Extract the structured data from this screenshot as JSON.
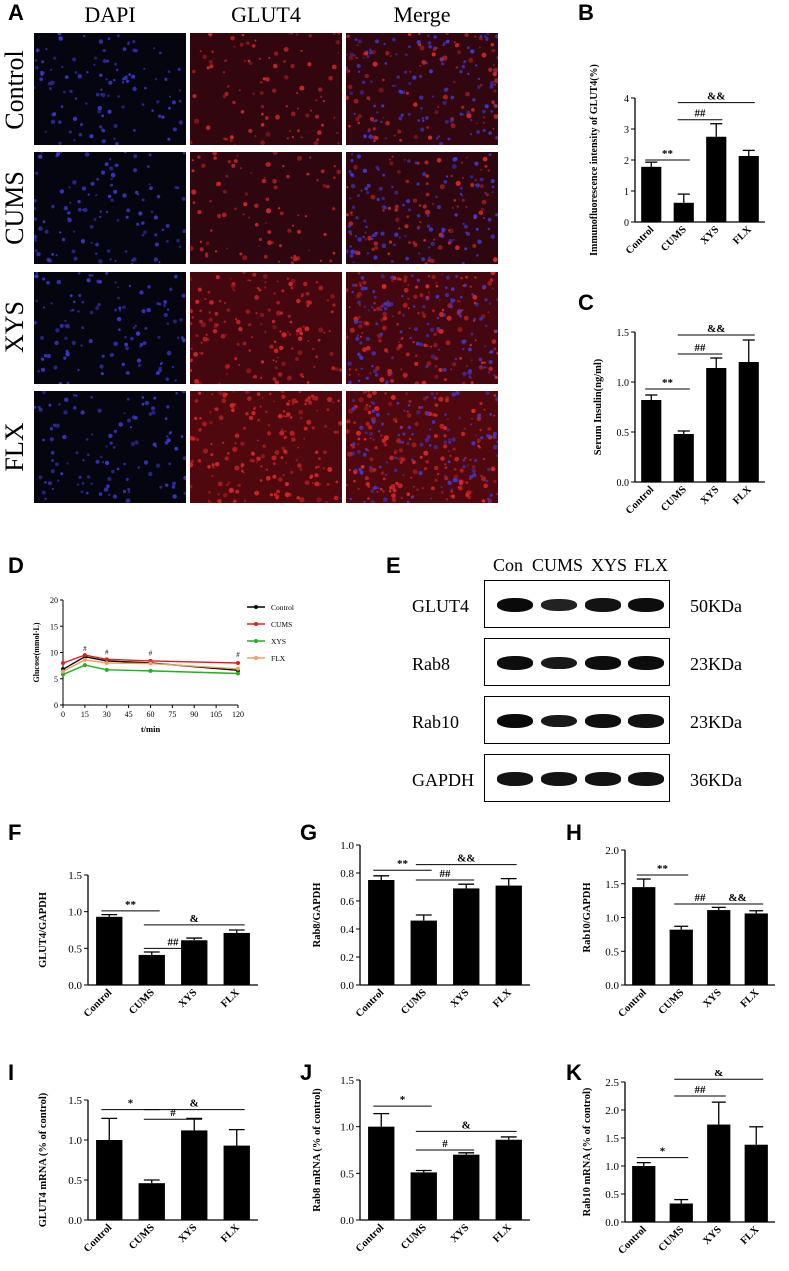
{
  "panel_letters": [
    "A",
    "B",
    "C",
    "D",
    "E",
    "F",
    "G",
    "H",
    "I",
    "J",
    "K"
  ],
  "colors": {
    "bar": "#000000",
    "dapi": "#1a1a8c",
    "glut4": "#b01818",
    "control": "#000000",
    "cums": "#e02020",
    "xys": "#20b020",
    "flx": "#f0a060"
  },
  "microscopy": {
    "columns": [
      "DAPI",
      "GLUT4",
      "Merge"
    ],
    "rows": [
      "Control",
      "CUMS",
      "XYS",
      "FLX"
    ]
  },
  "western_blot": {
    "lanes": [
      "Con",
      "CUMS",
      "XYS",
      "FLX"
    ],
    "proteins": [
      {
        "name": "GLUT4",
        "kda": "50KDa",
        "band_intensity": [
          1.0,
          0.6,
          0.85,
          0.95
        ]
      },
      {
        "name": "Rab8",
        "kda": "23KDa",
        "band_intensity": [
          0.95,
          0.75,
          0.95,
          0.95
        ]
      },
      {
        "name": "Rab10",
        "kda": "23KDa",
        "band_intensity": [
          1.0,
          0.75,
          0.9,
          0.85
        ]
      },
      {
        "name": "GAPDH",
        "kda": "36KDa",
        "band_intensity": [
          0.85,
          0.85,
          0.85,
          0.85
        ]
      }
    ]
  },
  "chart_data": [
    {
      "id": "B",
      "type": "bar",
      "categories": [
        "Control",
        "CUMS",
        "XYS",
        "FLX"
      ],
      "values": [
        1.78,
        0.62,
        2.75,
        2.13
      ],
      "errors": [
        0.15,
        0.28,
        0.42,
        0.18
      ],
      "ylabel": "Immunofluorescence intensity of GLUT4(%)",
      "ylim": [
        0,
        4
      ],
      "yticks": [
        "0",
        "1",
        "2",
        "3",
        "4"
      ],
      "annotations": [
        {
          "text": "**",
          "from": 0,
          "to": 1,
          "y": 2.0
        },
        {
          "text": "##",
          "from": 1,
          "to": 2,
          "y": 3.3
        },
        {
          "text": "&&",
          "from": 1,
          "to": 3,
          "y": 3.85
        }
      ]
    },
    {
      "id": "C",
      "type": "bar",
      "categories": [
        "Control",
        "CUMS",
        "XYS",
        "FLX"
      ],
      "values": [
        0.82,
        0.48,
        1.14,
        1.2
      ],
      "errors": [
        0.05,
        0.03,
        0.1,
        0.22
      ],
      "ylabel": "Serum Insulin(ng/ml)",
      "ylim": [
        0,
        1.5
      ],
      "yticks": [
        "0.0",
        "0.5",
        "1.0",
        "1.5"
      ],
      "annotations": [
        {
          "text": "**",
          "from": 0,
          "to": 1,
          "y": 0.93
        },
        {
          "text": "##",
          "from": 1,
          "to": 2,
          "y": 1.28
        },
        {
          "text": "&&",
          "from": 1,
          "to": 3,
          "y": 1.47
        }
      ]
    },
    {
      "id": "D",
      "type": "line",
      "x": [
        0,
        15,
        30,
        60,
        120
      ],
      "xticks": [
        "0",
        "15",
        "30",
        "45",
        "60",
        "75",
        "90",
        "105",
        "120"
      ],
      "xtick_values": [
        0,
        15,
        30,
        45,
        60,
        75,
        90,
        105,
        120
      ],
      "series": [
        {
          "name": "Control",
          "color": "#000000",
          "values": [
            6.8,
            9.2,
            8.4,
            8.0,
            6.6
          ]
        },
        {
          "name": "CUMS",
          "color": "#e02020",
          "values": [
            8.0,
            9.5,
            8.7,
            8.4,
            8.0
          ]
        },
        {
          "name": "XYS",
          "color": "#20b020",
          "values": [
            5.8,
            7.6,
            6.7,
            6.5,
            6.0
          ]
        },
        {
          "name": "FLX",
          "color": "#f0a060",
          "values": [
            6.4,
            8.6,
            8.0,
            7.9,
            6.9
          ]
        }
      ],
      "ylabel": "Glucose(mmol·L)",
      "xlabel": "t/min",
      "ylim": [
        0,
        20
      ],
      "yticks": [
        "0",
        "5",
        "10",
        "15",
        "20"
      ],
      "markers": [
        {
          "text": "#",
          "x": 15,
          "y": 10.3
        },
        {
          "text": "#",
          "x": 30,
          "y": 9.6
        },
        {
          "text": "#",
          "x": 60,
          "y": 9.4
        },
        {
          "text": "#",
          "x": 120,
          "y": 9.1
        }
      ],
      "legend": "top-right"
    },
    {
      "id": "F",
      "type": "bar",
      "categories": [
        "Control",
        "CUMS",
        "XYS",
        "FLX"
      ],
      "values": [
        0.93,
        0.41,
        0.61,
        0.71
      ],
      "errors": [
        0.03,
        0.04,
        0.03,
        0.04
      ],
      "ylabel": "GLUT4/GAPDH",
      "ylim": [
        0,
        1.5
      ],
      "yticks": [
        "0.0",
        "0.5",
        "1.0",
        "1.5"
      ],
      "annotations": [
        {
          "text": "**",
          "from": 0,
          "to": 1,
          "y": 1.01
        },
        {
          "text": "##",
          "from": 1,
          "to": 2,
          "y": 0.5
        },
        {
          "text": "&",
          "from": 1,
          "to": 3,
          "y": 0.82
        }
      ]
    },
    {
      "id": "G",
      "type": "bar",
      "categories": [
        "Control",
        "CUMS",
        "XYS",
        "FLX"
      ],
      "values": [
        0.75,
        0.46,
        0.69,
        0.71
      ],
      "errors": [
        0.03,
        0.04,
        0.03,
        0.05
      ],
      "ylabel": "Rab8/GAPDH",
      "ylim": [
        0,
        1.0
      ],
      "yticks": [
        "0.0",
        "0.2",
        "0.4",
        "0.6",
        "0.8",
        "1.0"
      ],
      "annotations": [
        {
          "text": "**",
          "from": 0,
          "to": 1,
          "y": 0.82
        },
        {
          "text": "##",
          "from": 1,
          "to": 2,
          "y": 0.75
        },
        {
          "text": "&&",
          "from": 1,
          "to": 3,
          "y": 0.86
        }
      ]
    },
    {
      "id": "H",
      "type": "bar",
      "categories": [
        "Control",
        "CUMS",
        "XYS",
        "FLX"
      ],
      "values": [
        1.45,
        0.82,
        1.11,
        1.06
      ],
      "errors": [
        0.12,
        0.05,
        0.04,
        0.04
      ],
      "ylabel": "Rab10/GAPDH",
      "ylim": [
        0,
        2.0
      ],
      "yticks": [
        "0.0",
        "0.5",
        "1.0",
        "1.5",
        "2.0"
      ],
      "annotations": [
        {
          "text": "**",
          "from": 0,
          "to": 1,
          "y": 1.63
        },
        {
          "text": "##",
          "from": 1,
          "to": 2,
          "y": 1.2
        },
        {
          "text": "&&",
          "from": 2,
          "to": 3,
          "y": 1.2
        }
      ]
    },
    {
      "id": "I",
      "type": "bar",
      "categories": [
        "Control",
        "CUMS",
        "XYS",
        "FLX"
      ],
      "values": [
        1.0,
        0.46,
        1.12,
        0.93
      ],
      "errors": [
        0.27,
        0.04,
        0.15,
        0.2
      ],
      "ylabel": "GLUT4 mRNA (% of control)",
      "ylim": [
        0,
        1.5
      ],
      "yticks": [
        "0.0",
        "0.5",
        "1.0",
        "1.5"
      ],
      "annotations": [
        {
          "text": "*",
          "from": 0,
          "to": 1,
          "y": 1.38
        },
        {
          "text": "#",
          "from": 1,
          "to": 2,
          "y": 1.26
        },
        {
          "text": "&",
          "from": 1,
          "to": 3,
          "y": 1.38
        }
      ]
    },
    {
      "id": "J",
      "type": "bar",
      "categories": [
        "Control",
        "CUMS",
        "XYS",
        "FLX"
      ],
      "values": [
        1.0,
        0.51,
        0.7,
        0.86
      ],
      "errors": [
        0.14,
        0.02,
        0.02,
        0.03
      ],
      "ylabel": "Rab8 mRNA (% of control)",
      "ylim": [
        0,
        1.5
      ],
      "yticks": [
        "0.0",
        "0.5",
        "1.0",
        "1.5"
      ],
      "annotations": [
        {
          "text": "*",
          "from": 0,
          "to": 1,
          "y": 1.22
        },
        {
          "text": "#",
          "from": 1,
          "to": 2,
          "y": 0.75
        },
        {
          "text": "&",
          "from": 1,
          "to": 3,
          "y": 0.95
        }
      ]
    },
    {
      "id": "K",
      "type": "bar",
      "categories": [
        "Control",
        "CUMS",
        "XYS",
        "FLX"
      ],
      "values": [
        1.0,
        0.33,
        1.74,
        1.38
      ],
      "errors": [
        0.06,
        0.07,
        0.4,
        0.32
      ],
      "ylabel": "Rab10 mRNA (% of control)",
      "ylim": [
        0,
        2.5
      ],
      "yticks": [
        "0.0",
        "0.5",
        "1.0",
        "1.5",
        "2.0",
        "2.5"
      ],
      "annotations": [
        {
          "text": "*",
          "from": 0,
          "to": 1,
          "y": 1.15
        },
        {
          "text": "##",
          "from": 1,
          "to": 2,
          "y": 2.25
        },
        {
          "text": "&",
          "from": 1,
          "to": 3,
          "y": 2.55
        }
      ]
    }
  ]
}
